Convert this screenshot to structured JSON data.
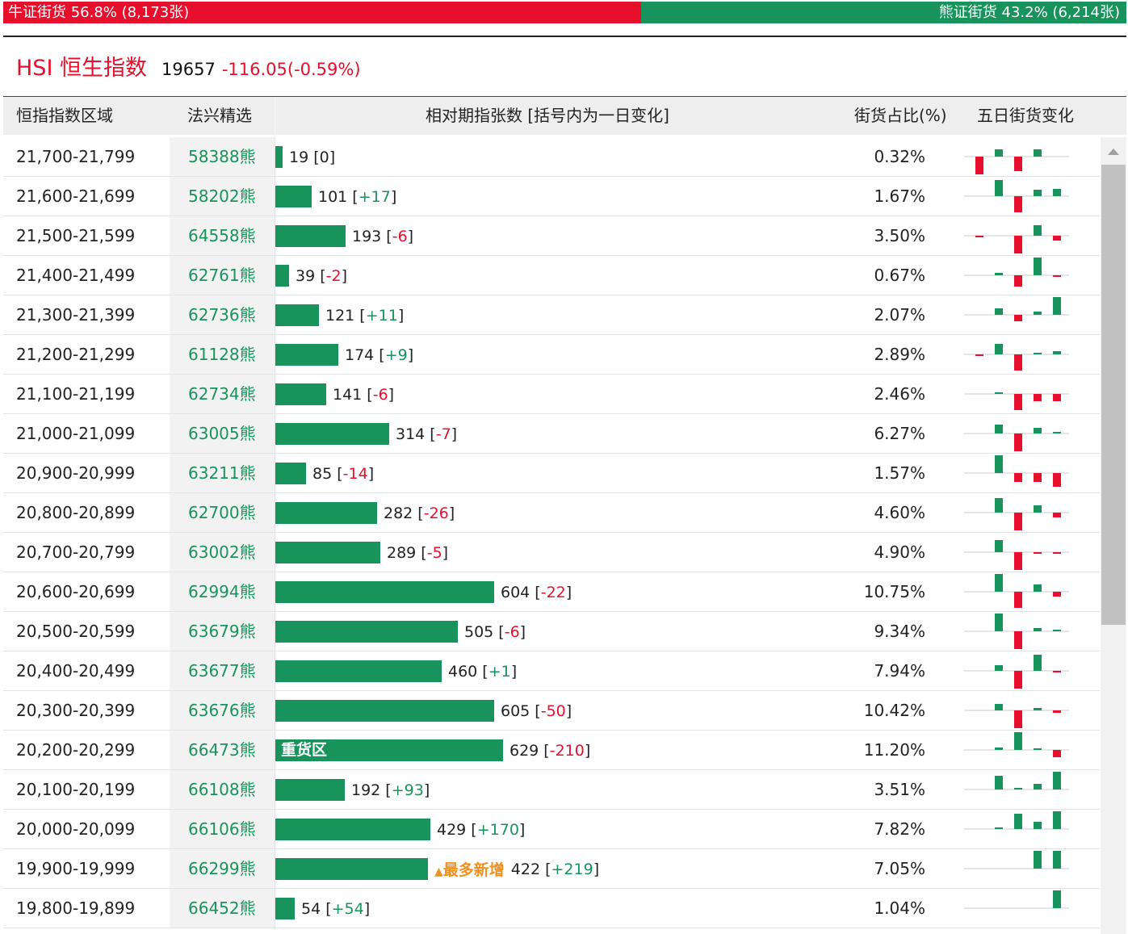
{
  "ratio": {
    "bull_label": "牛证街货 56.8% (8,173张)",
    "bear_label": "熊证街货 43.2% (6,214张)",
    "bull_fraction": 0.568,
    "bull_color": "#e60f2c",
    "bear_color": "#18935b"
  },
  "index": {
    "name": "HSI 恒生指数",
    "value": "19657",
    "change": "-116.05(-0.59%)"
  },
  "headers": {
    "range": "恒指指数区域",
    "pick": "法兴精选",
    "contracts": "相对期指张数 [括号内为一日变化]",
    "share": "街货占比(%)",
    "five_day": "五日街货变化"
  },
  "labels": {
    "heavy_zone": "重货区",
    "most_added": "最多新增",
    "most_added_icon": "triangle-up-icon"
  },
  "rows": [
    {
      "range": "21,700-21,799",
      "pick": "58388熊",
      "count": "19",
      "change": "0",
      "share": "0.32%",
      "value": 19,
      "five_day": [
        -1.0,
        0.4,
        -0.8,
        0.4,
        0
      ]
    },
    {
      "range": "21,600-21,699",
      "pick": "58202熊",
      "count": "101",
      "change": "+17",
      "share": "1.67%",
      "value": 101,
      "five_day": [
        0,
        0.9,
        -0.9,
        0.35,
        0.4
      ]
    },
    {
      "range": "21,500-21,599",
      "pick": "64558熊",
      "count": "193",
      "change": "-6",
      "share": "3.50%",
      "value": 193,
      "five_day": [
        -0.1,
        0,
        -1.0,
        0.6,
        -0.25
      ]
    },
    {
      "range": "21,400-21,499",
      "pick": "62761熊",
      "count": "39",
      "change": "-2",
      "share": "0.67%",
      "value": 39,
      "five_day": [
        0,
        0.15,
        -0.65,
        1.0,
        -0.1
      ]
    },
    {
      "range": "21,300-21,399",
      "pick": "62736熊",
      "count": "121",
      "change": "+11",
      "share": "2.07%",
      "value": 121,
      "five_day": [
        0,
        0.35,
        -0.35,
        0.2,
        1.0
      ]
    },
    {
      "range": "21,200-21,299",
      "pick": "61128熊",
      "count": "174",
      "change": "+9",
      "share": "2.89%",
      "value": 174,
      "five_day": [
        -0.1,
        0.6,
        -0.9,
        0.1,
        0.2
      ]
    },
    {
      "range": "21,100-21,199",
      "pick": "62734熊",
      "count": "141",
      "change": "-6",
      "share": "2.46%",
      "value": 141,
      "five_day": [
        0,
        0.1,
        -0.9,
        -0.4,
        -0.4
      ]
    },
    {
      "range": "21,000-21,099",
      "pick": "63005熊",
      "count": "314",
      "change": "-7",
      "share": "6.27%",
      "value": 314,
      "five_day": [
        0,
        0.5,
        -1.0,
        0.3,
        0.05
      ]
    },
    {
      "range": "20,900-20,999",
      "pick": "63211熊",
      "count": "85",
      "change": "-14",
      "share": "1.57%",
      "value": 85,
      "five_day": [
        0,
        1.0,
        -0.5,
        -0.5,
        -0.75
      ]
    },
    {
      "range": "20,800-20,899",
      "pick": "62700熊",
      "count": "282",
      "change": "-26",
      "share": "4.60%",
      "value": 282,
      "five_day": [
        0,
        0.8,
        -1.0,
        0.4,
        -0.25
      ]
    },
    {
      "range": "20,700-20,799",
      "pick": "63002熊",
      "count": "289",
      "change": "-5",
      "share": "4.90%",
      "value": 289,
      "five_day": [
        0,
        0.7,
        -1.0,
        -0.05,
        -0.05
      ]
    },
    {
      "range": "20,600-20,699",
      "pick": "62994熊",
      "count": "604",
      "change": "-22",
      "share": "10.75%",
      "value": 604,
      "five_day": [
        0,
        1.0,
        -0.9,
        0.4,
        -0.25
      ]
    },
    {
      "range": "20,500-20,599",
      "pick": "63679熊",
      "count": "505",
      "change": "-6",
      "share": "9.34%",
      "value": 505,
      "five_day": [
        0,
        1.0,
        -1.0,
        0.2,
        0.05
      ]
    },
    {
      "range": "20,400-20,499",
      "pick": "63677熊",
      "count": "460",
      "change": "+1",
      "share": "7.94%",
      "value": 460,
      "five_day": [
        0,
        0.3,
        -1.0,
        0.9,
        -0.05
      ]
    },
    {
      "range": "20,300-20,399",
      "pick": "63676熊",
      "count": "605",
      "change": "-50",
      "share": "10.42%",
      "value": 605,
      "five_day": [
        0,
        0.35,
        -1.0,
        0.15,
        -0.15
      ]
    },
    {
      "range": "20,200-20,299",
      "pick": "66473熊",
      "count": "629",
      "change": "-210",
      "share": "11.20%",
      "value": 629,
      "heavy": true,
      "five_day": [
        0,
        0.15,
        1.0,
        0.1,
        -0.4
      ]
    },
    {
      "range": "20,100-20,199",
      "pick": "66108熊",
      "count": "192",
      "change": "+93",
      "share": "3.51%",
      "value": 192,
      "five_day": [
        0,
        0.75,
        0.1,
        0.3,
        1.0
      ]
    },
    {
      "range": "20,000-20,099",
      "pick": "66106熊",
      "count": "429",
      "change": "+170",
      "share": "7.82%",
      "value": 429,
      "five_day": [
        0,
        0.05,
        0.85,
        0.4,
        1.0
      ]
    },
    {
      "range": "19,900-19,999",
      "pick": "66299熊",
      "count": "422",
      "change": "+219",
      "share": "7.05%",
      "value": 422,
      "most_added": true,
      "five_day": [
        0,
        0,
        0,
        1.0,
        1.0
      ]
    },
    {
      "range": "19,800-19,899",
      "pick": "66452熊",
      "count": "54",
      "change": "+54",
      "share": "1.04%",
      "value": 54,
      "five_day": [
        0,
        0,
        0,
        0,
        1.0
      ]
    }
  ],
  "scroll": {
    "up_icon": "scroll-up-arrow-icon"
  }
}
